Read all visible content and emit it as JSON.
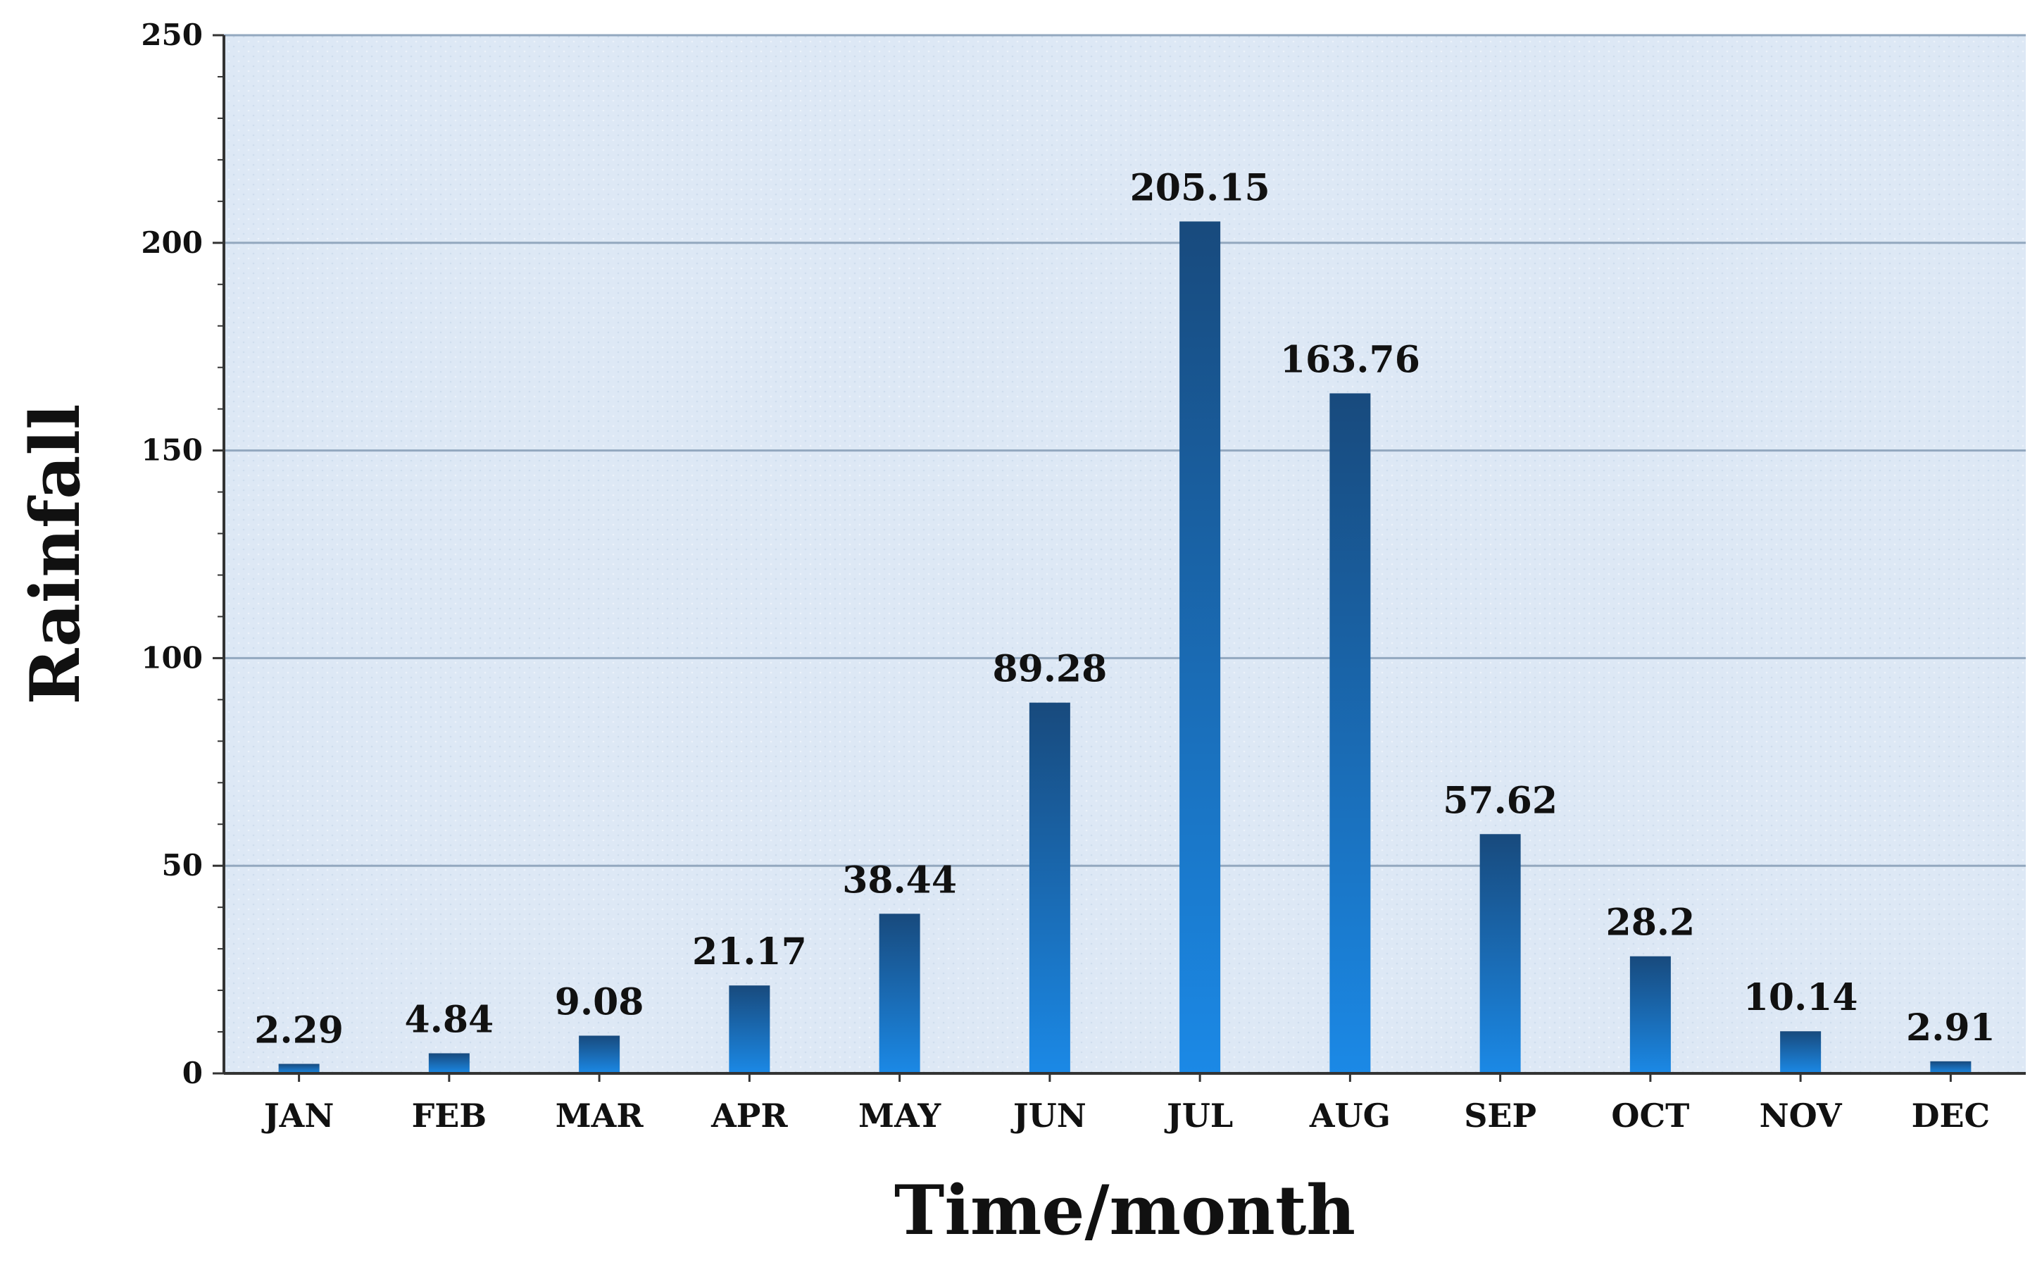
{
  "chart_data": {
    "type": "bar",
    "categories": [
      "JAN",
      "FEB",
      "MAR",
      "APR",
      "MAY",
      "JUN",
      "JUL",
      "AUG",
      "SEP",
      "OCT",
      "NOV",
      "DEC"
    ],
    "values": [
      2.29,
      4.84,
      9.08,
      21.17,
      38.44,
      89.28,
      205.15,
      163.76,
      57.62,
      28.2,
      10.14,
      2.91
    ],
    "value_labels": [
      "2.29",
      "4.84",
      "9.08",
      "21.17",
      "38.44",
      "89.28",
      "205.15",
      "163.76",
      "57.62",
      "28.2",
      "10.14",
      "2.91"
    ],
    "title": "",
    "xlabel": "Time/month",
    "ylabel": "Rainfall",
    "ylim": [
      0,
      250
    ],
    "yticks": [
      0,
      50,
      100,
      150,
      200,
      250
    ],
    "ytick_labels": [
      "0",
      "50",
      "100",
      "150",
      "200",
      "250"
    ],
    "grid": true,
    "legend": "none",
    "colors": {
      "plot_background": "#dde8f5",
      "gridline": "#93a8bf",
      "bar_top": "#184a7d",
      "bar_bottom": "#1b89e6",
      "axis": "#333333"
    }
  }
}
